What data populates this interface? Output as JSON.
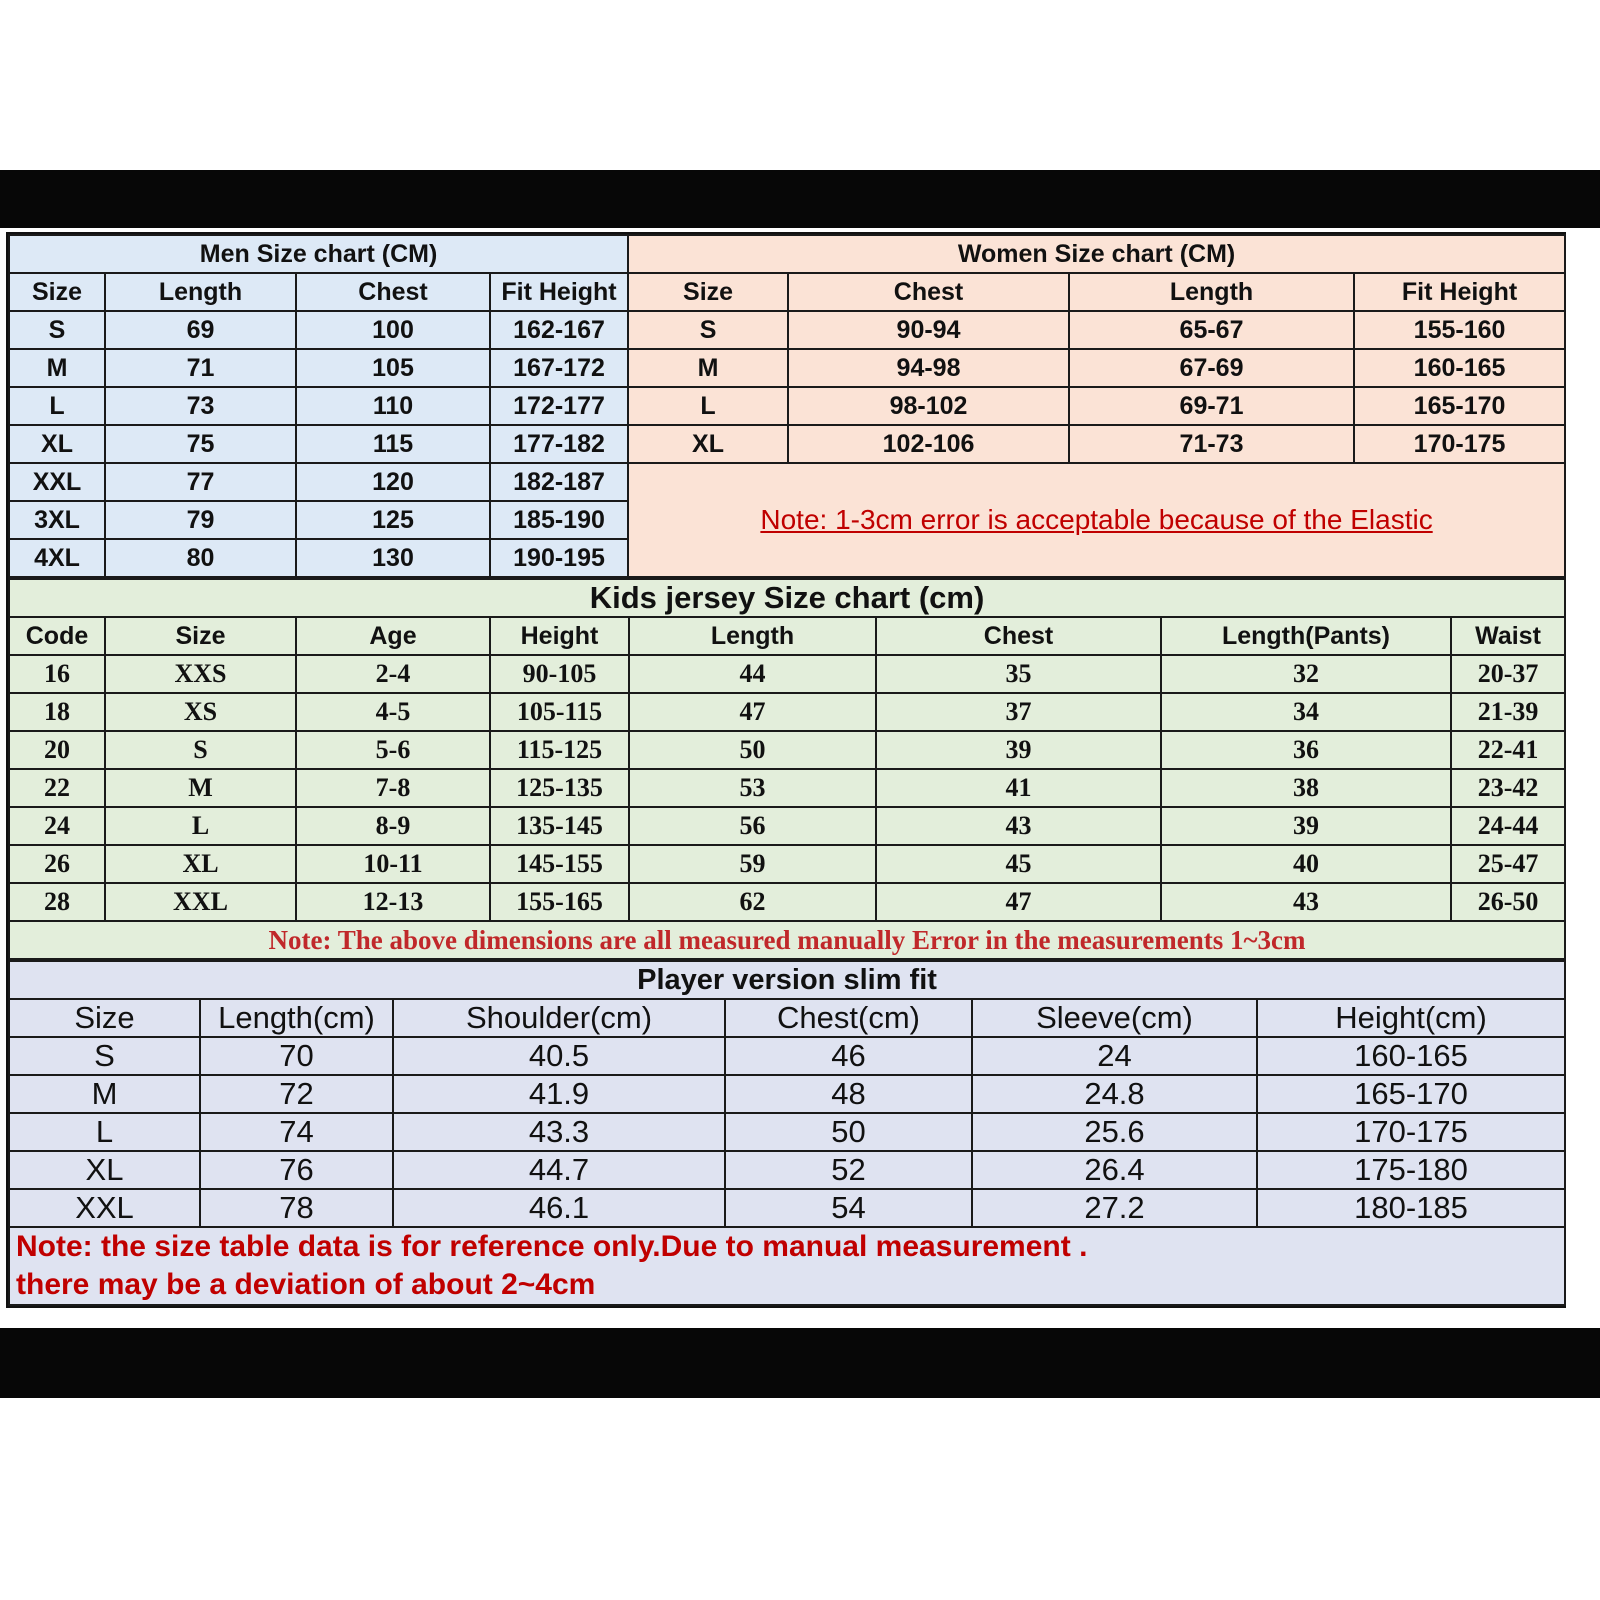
{
  "colors": {
    "men_bg": "#dde9f6",
    "women_bg": "#fbe3d6",
    "kids_bg": "#e3eedb",
    "player_bg": "#dfe3f1",
    "note_red": "#c00000"
  },
  "men": {
    "title": "Men Size chart (CM)",
    "headers": [
      "Size",
      "Length",
      "Chest",
      "Fit Height"
    ],
    "rows": [
      [
        "S",
        "69",
        "100",
        "162-167"
      ],
      [
        "M",
        "71",
        "105",
        "167-172"
      ],
      [
        "L",
        "73",
        "110",
        "172-177"
      ],
      [
        "XL",
        "75",
        "115",
        "177-182"
      ],
      [
        "XXL",
        "77",
        "120",
        "182-187"
      ],
      [
        "3XL",
        "79",
        "125",
        "185-190"
      ],
      [
        "4XL",
        "80",
        "130",
        "190-195"
      ]
    ]
  },
  "women": {
    "title": "Women Size chart (CM)",
    "headers": [
      "Size",
      "Chest",
      "Length",
      "Fit Height"
    ],
    "rows": [
      [
        "S",
        "90-94",
        "65-67",
        "155-160"
      ],
      [
        "M",
        "94-98",
        "67-69",
        "160-165"
      ],
      [
        "L",
        "98-102",
        "69-71",
        "165-170"
      ],
      [
        "XL",
        "102-106",
        "71-73",
        "170-175"
      ]
    ],
    "note": "Note: 1-3cm error is acceptable because of the Elastic"
  },
  "kids": {
    "title": "Kids jersey Size chart (cm)",
    "headers": [
      "Code",
      "Size",
      "Age",
      "Height",
      "Length",
      "Chest",
      "Length(Pants)",
      "Waist"
    ],
    "rows": [
      [
        "16",
        "XXS",
        "2-4",
        "90-105",
        "44",
        "35",
        "32",
        "20-37"
      ],
      [
        "18",
        "XS",
        "4-5",
        "105-115",
        "47",
        "37",
        "34",
        "21-39"
      ],
      [
        "20",
        "S",
        "5-6",
        "115-125",
        "50",
        "39",
        "36",
        "22-41"
      ],
      [
        "22",
        "M",
        "7-8",
        "125-135",
        "53",
        "41",
        "38",
        "23-42"
      ],
      [
        "24",
        "L",
        "8-9",
        "135-145",
        "56",
        "43",
        "39",
        "24-44"
      ],
      [
        "26",
        "XL",
        "10-11",
        "145-155",
        "59",
        "45",
        "40",
        "25-47"
      ],
      [
        "28",
        "XXL",
        "12-13",
        "155-165",
        "62",
        "47",
        "43",
        "26-50"
      ]
    ],
    "note": "Note: The above dimensions are all measured manually Error in the measurements 1~3cm"
  },
  "player": {
    "title": "Player version slim fit",
    "headers": [
      "Size",
      "Length(cm)",
      "Shoulder(cm)",
      "Chest(cm)",
      "Sleeve(cm)",
      "Height(cm)"
    ],
    "rows": [
      [
        "S",
        "70",
        "40.5",
        "46",
        "24",
        "160-165"
      ],
      [
        "M",
        "72",
        "41.9",
        "48",
        "24.8",
        "165-170"
      ],
      [
        "L",
        "74",
        "43.3",
        "50",
        "25.6",
        "170-175"
      ],
      [
        "XL",
        "76",
        "44.7",
        "52",
        "26.4",
        "175-180"
      ],
      [
        "XXL",
        "78",
        "46.1",
        "54",
        "27.2",
        "180-185"
      ]
    ],
    "note_line1": "Note:  the size table data is for reference only.Due to manual measurement .",
    "note_line2": "there may be a deviation of about 2~4cm"
  }
}
